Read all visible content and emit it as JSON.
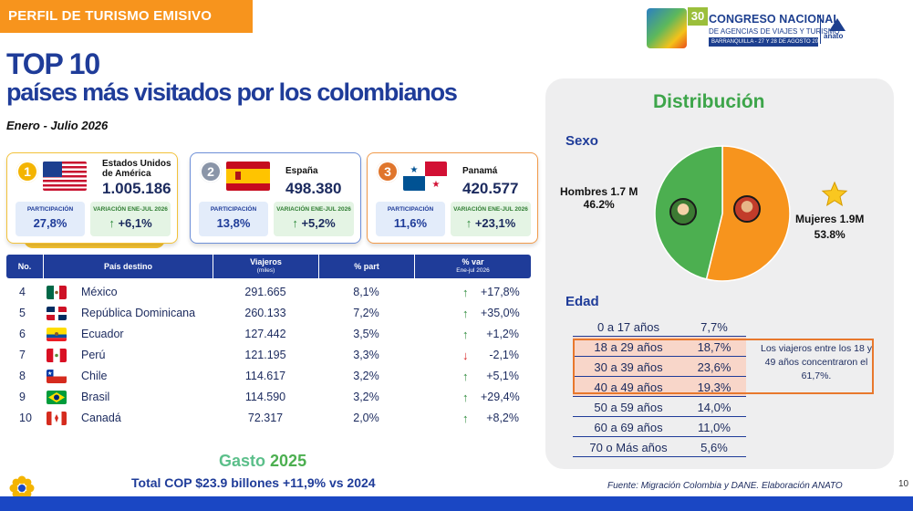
{
  "header": {
    "banner": "PERFIL DE TURISMO EMISIVO",
    "logo": {
      "number": "30",
      "line1": "CONGRESO NACIONAL",
      "line2": "DE AGENCIAS DE VIAJES Y TURISMO",
      "line3": "BARRANQUILLA - 27 Y 28 DE AGOSTO 2026",
      "brand": "anato"
    }
  },
  "title": {
    "main": "TOP 10",
    "sub": "países más visitados por los colombianos",
    "period": "Enero - Julio 2026"
  },
  "top3": [
    {
      "rank": "1",
      "country": "Estados Unidos de América",
      "travelers": "1.005.186",
      "part_label": "PARTICIPACIÓN",
      "part": "27,8%",
      "var_label": "VARIACIÓN ENE-JUL 2026",
      "var": "+6,1%"
    },
    {
      "rank": "2",
      "country": "España",
      "travelers": "498.380",
      "part_label": "PARTICIPACIÓN",
      "part": "13,8%",
      "var_label": "VARIACIÓN ENE-JUL 2026",
      "var": "+5,2%"
    },
    {
      "rank": "3",
      "country": "Panamá",
      "travelers": "420.577",
      "part_label": "PARTICIPACIÓN",
      "part": "11,6%",
      "var_label": "VARIACIÓN ENE-JUL 2026",
      "var": "+23,1%"
    }
  ],
  "table": {
    "headers": {
      "no": "No.",
      "country": "País destino",
      "travelers": "Viajeros",
      "travelers_unit": "(miles)",
      "part": "% part",
      "var": "% var",
      "var_period": "Ene-jul 2026"
    },
    "rows": [
      {
        "no": "4",
        "country": "México",
        "travelers": "291.665",
        "part": "8,1%",
        "dir": "up",
        "var": "+17,8%"
      },
      {
        "no": "5",
        "country": "República Dominicana",
        "travelers": "260.133",
        "part": "7,2%",
        "dir": "up",
        "var": "+35,0%"
      },
      {
        "no": "6",
        "country": "Ecuador",
        "travelers": "127.442",
        "part": "3,5%",
        "dir": "up",
        "var": "+1,2%"
      },
      {
        "no": "7",
        "country": "Perú",
        "travelers": "121.195",
        "part": "3,3%",
        "dir": "down",
        "var": "-2,1%"
      },
      {
        "no": "8",
        "country": "Chile",
        "travelers": "114.617",
        "part": "3,2%",
        "dir": "up",
        "var": "+5,1%"
      },
      {
        "no": "9",
        "country": "Brasil",
        "travelers": "114.590",
        "part": "3,2%",
        "dir": "up",
        "var": "+29,4%"
      },
      {
        "no": "10",
        "country": "Canadá",
        "travelers": "72.317",
        "part": "2,0%",
        "dir": "up",
        "var": "+8,2%"
      }
    ]
  },
  "gasto": {
    "title": "Gasto",
    "year": "2025",
    "subtitle": "Total COP $23.9 billones +11,9% vs 2024"
  },
  "distribution": {
    "title": "Distribución",
    "sexo_label": "Sexo",
    "hombres_label": "Hombres 1.7 M",
    "hombres_pct": "46.2%",
    "mujeres_label": "Mujeres 1.9M",
    "mujeres_pct": "53.8%",
    "edad_label": "Edad",
    "ages": [
      {
        "range": "0 a 17  años",
        "pct": "7,7%"
      },
      {
        "range": "18 a 29  años",
        "pct": "18,7%"
      },
      {
        "range": "30 a 39  años",
        "pct": "23,6%"
      },
      {
        "range": "40 a 49  años",
        "pct": "19,3%"
      },
      {
        "range": "50 a 59  años",
        "pct": "14,0%"
      },
      {
        "range": "60 a 69  años",
        "pct": "11,0%"
      },
      {
        "range": "70 o Más  años",
        "pct": "5,6%"
      }
    ],
    "note": "Los viajeros entre los 18 y 49 años concentraron el 61,7%."
  },
  "chart_data": {
    "type": "pie",
    "title": "Sexo",
    "categories": [
      "Hombres",
      "Mujeres"
    ],
    "values": [
      46.2,
      53.8
    ],
    "colors": [
      "#4caf50",
      "#f7941d"
    ]
  },
  "footer": {
    "source": "Fuente: Migración Colombia y DANE. Elaboración ANATO",
    "page": "10"
  },
  "colors": {
    "primary": "#1f3c99",
    "accent": "#f7941d",
    "green": "#4caf50"
  }
}
